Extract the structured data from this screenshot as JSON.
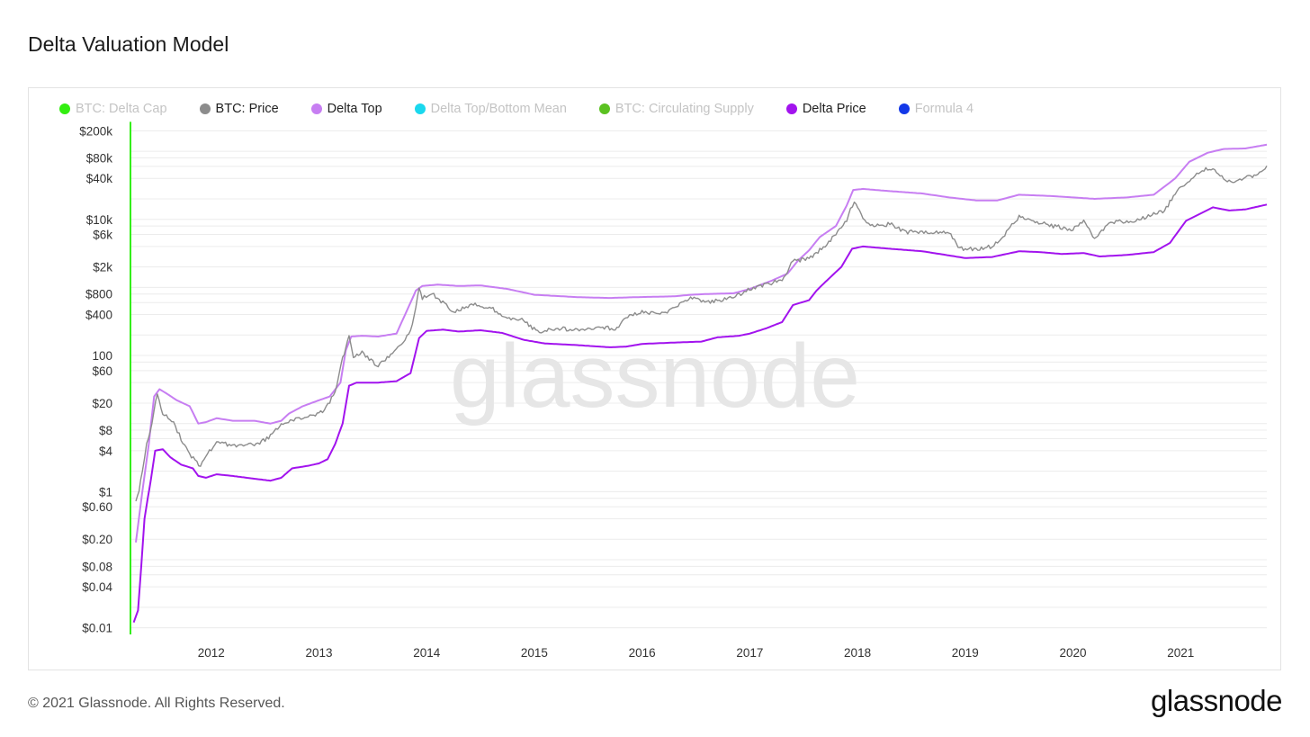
{
  "title": "Delta Valuation Model",
  "footer": {
    "copyright": "© 2021 Glassnode. All Rights Reserved.",
    "brand": "glassnode"
  },
  "watermark": "glassnode",
  "legend": [
    {
      "label": "BTC: Delta Cap",
      "color": "#33ee11",
      "active": false
    },
    {
      "label": "BTC: Price",
      "color": "#8c8c8c",
      "active": true
    },
    {
      "label": "Delta Top",
      "color": "#c77ef2",
      "active": true
    },
    {
      "label": "Delta Top/Bottom Mean",
      "color": "#1ad8ee",
      "active": false
    },
    {
      "label": "BTC: Circulating Supply",
      "color": "#5bc221",
      "active": false
    },
    {
      "label": "Delta Price",
      "color": "#a213ee",
      "active": true
    },
    {
      "label": "Formula 4",
      "color": "#1338e8",
      "active": false
    }
  ],
  "chart_data": {
    "type": "line",
    "y_scale": "log",
    "ylim": [
      0.008,
      250000
    ],
    "xlim": [
      2011.25,
      2021.8
    ],
    "y_ticks": [
      {
        "label": "$200k",
        "value": 200000
      },
      {
        "label": "$80k",
        "value": 80000
      },
      {
        "label": "$40k",
        "value": 40000
      },
      {
        "label": "$10k",
        "value": 10000
      },
      {
        "label": "$6k",
        "value": 6000
      },
      {
        "label": "$2k",
        "value": 2000
      },
      {
        "label": "$800",
        "value": 800
      },
      {
        "label": "$400",
        "value": 400
      },
      {
        "label": "100",
        "value": 100
      },
      {
        "label": "$60",
        "value": 60
      },
      {
        "label": "$20",
        "value": 20
      },
      {
        "label": "$8",
        "value": 8
      },
      {
        "label": "$4",
        "value": 4
      },
      {
        "label": "$1",
        "value": 1
      },
      {
        "label": "$0.60",
        "value": 0.6
      },
      {
        "label": "$0.20",
        "value": 0.2
      },
      {
        "label": "$0.08",
        "value": 0.08
      },
      {
        "label": "$0.04",
        "value": 0.04
      },
      {
        "label": "$0.01",
        "value": 0.01
      }
    ],
    "x_ticks": [
      "2012",
      "2013",
      "2014",
      "2015",
      "2016",
      "2017",
      "2018",
      "2019",
      "2020",
      "2021"
    ],
    "series": [
      {
        "name": "Delta Top",
        "color": "#c77ef2",
        "points": [
          [
            2011.3,
            0.18
          ],
          [
            2011.36,
            1.0
          ],
          [
            2011.42,
            5
          ],
          [
            2011.47,
            25
          ],
          [
            2011.52,
            32
          ],
          [
            2011.58,
            28
          ],
          [
            2011.68,
            22
          ],
          [
            2011.8,
            18
          ],
          [
            2011.88,
            10
          ],
          [
            2011.95,
            10.5
          ],
          [
            2012.05,
            12
          ],
          [
            2012.2,
            11
          ],
          [
            2012.4,
            11
          ],
          [
            2012.55,
            10
          ],
          [
            2012.65,
            11
          ],
          [
            2012.72,
            14
          ],
          [
            2012.85,
            18
          ],
          [
            2013.0,
            22
          ],
          [
            2013.1,
            25
          ],
          [
            2013.2,
            40
          ],
          [
            2013.25,
            120
          ],
          [
            2013.3,
            190
          ],
          [
            2013.4,
            195
          ],
          [
            2013.55,
            190
          ],
          [
            2013.72,
            210
          ],
          [
            2013.8,
            400
          ],
          [
            2013.9,
            900
          ],
          [
            2013.96,
            1050
          ],
          [
            2014.1,
            1100
          ],
          [
            2014.3,
            1050
          ],
          [
            2014.5,
            1070
          ],
          [
            2014.75,
            950
          ],
          [
            2015.0,
            780
          ],
          [
            2015.4,
            720
          ],
          [
            2015.7,
            700
          ],
          [
            2015.95,
            720
          ],
          [
            2016.3,
            740
          ],
          [
            2016.45,
            780
          ],
          [
            2016.6,
            800
          ],
          [
            2016.85,
            820
          ],
          [
            2017.0,
            950
          ],
          [
            2017.2,
            1250
          ],
          [
            2017.35,
            1600
          ],
          [
            2017.45,
            2500
          ],
          [
            2017.55,
            3500
          ],
          [
            2017.65,
            5500
          ],
          [
            2017.8,
            8000
          ],
          [
            2017.9,
            16000
          ],
          [
            2017.96,
            27000
          ],
          [
            2018.05,
            28000
          ],
          [
            2018.3,
            26000
          ],
          [
            2018.6,
            24000
          ],
          [
            2018.85,
            21000
          ],
          [
            2019.1,
            19000
          ],
          [
            2019.3,
            19000
          ],
          [
            2019.5,
            23000
          ],
          [
            2019.8,
            22000
          ],
          [
            2020.0,
            21000
          ],
          [
            2020.2,
            20000
          ],
          [
            2020.5,
            21000
          ],
          [
            2020.75,
            23000
          ],
          [
            2020.95,
            40000
          ],
          [
            2021.08,
            70000
          ],
          [
            2021.25,
            95000
          ],
          [
            2021.4,
            108000
          ],
          [
            2021.6,
            110000
          ],
          [
            2021.8,
            125000
          ]
        ]
      },
      {
        "name": "BTC: Price",
        "color": "#8c8c8c",
        "points": [
          [
            2011.3,
            0.7
          ],
          [
            2011.33,
            1.0
          ],
          [
            2011.36,
            2
          ],
          [
            2011.4,
            5
          ],
          [
            2011.45,
            10
          ],
          [
            2011.5,
            28
          ],
          [
            2011.55,
            14
          ],
          [
            2011.6,
            12
          ],
          [
            2011.65,
            10
          ],
          [
            2011.72,
            6
          ],
          [
            2011.8,
            3.5
          ],
          [
            2011.9,
            2.4
          ],
          [
            2011.95,
            3.3
          ],
          [
            2012.05,
            5.5
          ],
          [
            2012.15,
            4.9
          ],
          [
            2012.3,
            4.7
          ],
          [
            2012.45,
            5.2
          ],
          [
            2012.55,
            6.5
          ],
          [
            2012.65,
            10
          ],
          [
            2012.8,
            12
          ],
          [
            2012.95,
            13.5
          ],
          [
            2013.05,
            15
          ],
          [
            2013.15,
            30
          ],
          [
            2013.22,
            90
          ],
          [
            2013.28,
            190
          ],
          [
            2013.32,
            95
          ],
          [
            2013.4,
            110
          ],
          [
            2013.55,
            70
          ],
          [
            2013.65,
            100
          ],
          [
            2013.75,
            140
          ],
          [
            2013.85,
            220
          ],
          [
            2013.9,
            500
          ],
          [
            2013.93,
            1000
          ],
          [
            2013.96,
            700
          ],
          [
            2014.05,
            800
          ],
          [
            2014.15,
            600
          ],
          [
            2014.25,
            450
          ],
          [
            2014.45,
            560
          ],
          [
            2014.6,
            500
          ],
          [
            2014.75,
            360
          ],
          [
            2014.9,
            330
          ],
          [
            2015.03,
            220
          ],
          [
            2015.2,
            250
          ],
          [
            2015.4,
            240
          ],
          [
            2015.6,
            260
          ],
          [
            2015.75,
            250
          ],
          [
            2015.9,
            400
          ],
          [
            2016.0,
            430
          ],
          [
            2016.2,
            410
          ],
          [
            2016.45,
            700
          ],
          [
            2016.6,
            600
          ],
          [
            2016.85,
            720
          ],
          [
            2017.0,
            960
          ],
          [
            2017.15,
            1100
          ],
          [
            2017.3,
            1300
          ],
          [
            2017.4,
            2400
          ],
          [
            2017.5,
            2600
          ],
          [
            2017.6,
            3000
          ],
          [
            2017.7,
            4200
          ],
          [
            2017.8,
            6000
          ],
          [
            2017.9,
            10000
          ],
          [
            2017.97,
            19000
          ],
          [
            2018.05,
            11000
          ],
          [
            2018.12,
            8000
          ],
          [
            2018.3,
            8500
          ],
          [
            2018.45,
            6500
          ],
          [
            2018.6,
            6700
          ],
          [
            2018.85,
            6300
          ],
          [
            2018.95,
            3700
          ],
          [
            2019.1,
            3600
          ],
          [
            2019.25,
            4000
          ],
          [
            2019.35,
            5500
          ],
          [
            2019.5,
            11000
          ],
          [
            2019.6,
            10000
          ],
          [
            2019.8,
            8000
          ],
          [
            2020.0,
            7200
          ],
          [
            2020.1,
            9500
          ],
          [
            2020.2,
            5000
          ],
          [
            2020.35,
            9000
          ],
          [
            2020.55,
            9400
          ],
          [
            2020.7,
            11000
          ],
          [
            2020.85,
            13500
          ],
          [
            2020.95,
            24000
          ],
          [
            2021.05,
            34000
          ],
          [
            2021.2,
            52000
          ],
          [
            2021.3,
            58000
          ],
          [
            2021.4,
            38000
          ],
          [
            2021.5,
            34000
          ],
          [
            2021.6,
            42000
          ],
          [
            2021.7,
            45000
          ],
          [
            2021.8,
            61000
          ]
        ]
      },
      {
        "name": "Delta Price",
        "color": "#a213ee",
        "points": [
          [
            2011.28,
            0.012
          ],
          [
            2011.32,
            0.018
          ],
          [
            2011.35,
            0.08
          ],
          [
            2011.38,
            0.4
          ],
          [
            2011.41,
            0.8
          ],
          [
            2011.44,
            1.5
          ],
          [
            2011.48,
            4.0
          ],
          [
            2011.55,
            4.2
          ],
          [
            2011.62,
            3.2
          ],
          [
            2011.72,
            2.5
          ],
          [
            2011.83,
            2.2
          ],
          [
            2011.88,
            1.7
          ],
          [
            2011.95,
            1.6
          ],
          [
            2012.05,
            1.8
          ],
          [
            2012.2,
            1.7
          ],
          [
            2012.4,
            1.55
          ],
          [
            2012.55,
            1.45
          ],
          [
            2012.65,
            1.6
          ],
          [
            2012.75,
            2.2
          ],
          [
            2012.9,
            2.4
          ],
          [
            2013.0,
            2.6
          ],
          [
            2013.08,
            3.0
          ],
          [
            2013.15,
            5
          ],
          [
            2013.22,
            10
          ],
          [
            2013.28,
            36
          ],
          [
            2013.35,
            40
          ],
          [
            2013.55,
            40
          ],
          [
            2013.72,
            42
          ],
          [
            2013.85,
            55
          ],
          [
            2013.93,
            180
          ],
          [
            2014.0,
            230
          ],
          [
            2014.15,
            240
          ],
          [
            2014.3,
            225
          ],
          [
            2014.5,
            235
          ],
          [
            2014.7,
            215
          ],
          [
            2014.9,
            170
          ],
          [
            2015.1,
            150
          ],
          [
            2015.4,
            142
          ],
          [
            2015.7,
            132
          ],
          [
            2015.85,
            135
          ],
          [
            2016.0,
            148
          ],
          [
            2016.3,
            155
          ],
          [
            2016.55,
            160
          ],
          [
            2016.7,
            185
          ],
          [
            2016.9,
            195
          ],
          [
            2017.0,
            210
          ],
          [
            2017.15,
            250
          ],
          [
            2017.3,
            310
          ],
          [
            2017.4,
            550
          ],
          [
            2017.55,
            650
          ],
          [
            2017.62,
            900
          ],
          [
            2017.7,
            1200
          ],
          [
            2017.85,
            2000
          ],
          [
            2017.95,
            3700
          ],
          [
            2018.05,
            4000
          ],
          [
            2018.3,
            3700
          ],
          [
            2018.6,
            3400
          ],
          [
            2018.85,
            2950
          ],
          [
            2019.0,
            2700
          ],
          [
            2019.25,
            2800
          ],
          [
            2019.5,
            3400
          ],
          [
            2019.7,
            3300
          ],
          [
            2019.9,
            3100
          ],
          [
            2020.1,
            3200
          ],
          [
            2020.25,
            2850
          ],
          [
            2020.5,
            3000
          ],
          [
            2020.75,
            3300
          ],
          [
            2020.9,
            4500
          ],
          [
            2021.05,
            9500
          ],
          [
            2021.2,
            12500
          ],
          [
            2021.3,
            15000
          ],
          [
            2021.45,
            13500
          ],
          [
            2021.6,
            14000
          ],
          [
            2021.8,
            16500
          ]
        ]
      },
      {
        "name": "BTC: Delta Cap",
        "color": "#33ee11",
        "hidden_line_marker": true,
        "points": [
          [
            2011.25,
            0.01
          ],
          [
            2011.25,
            200000
          ]
        ]
      }
    ]
  }
}
